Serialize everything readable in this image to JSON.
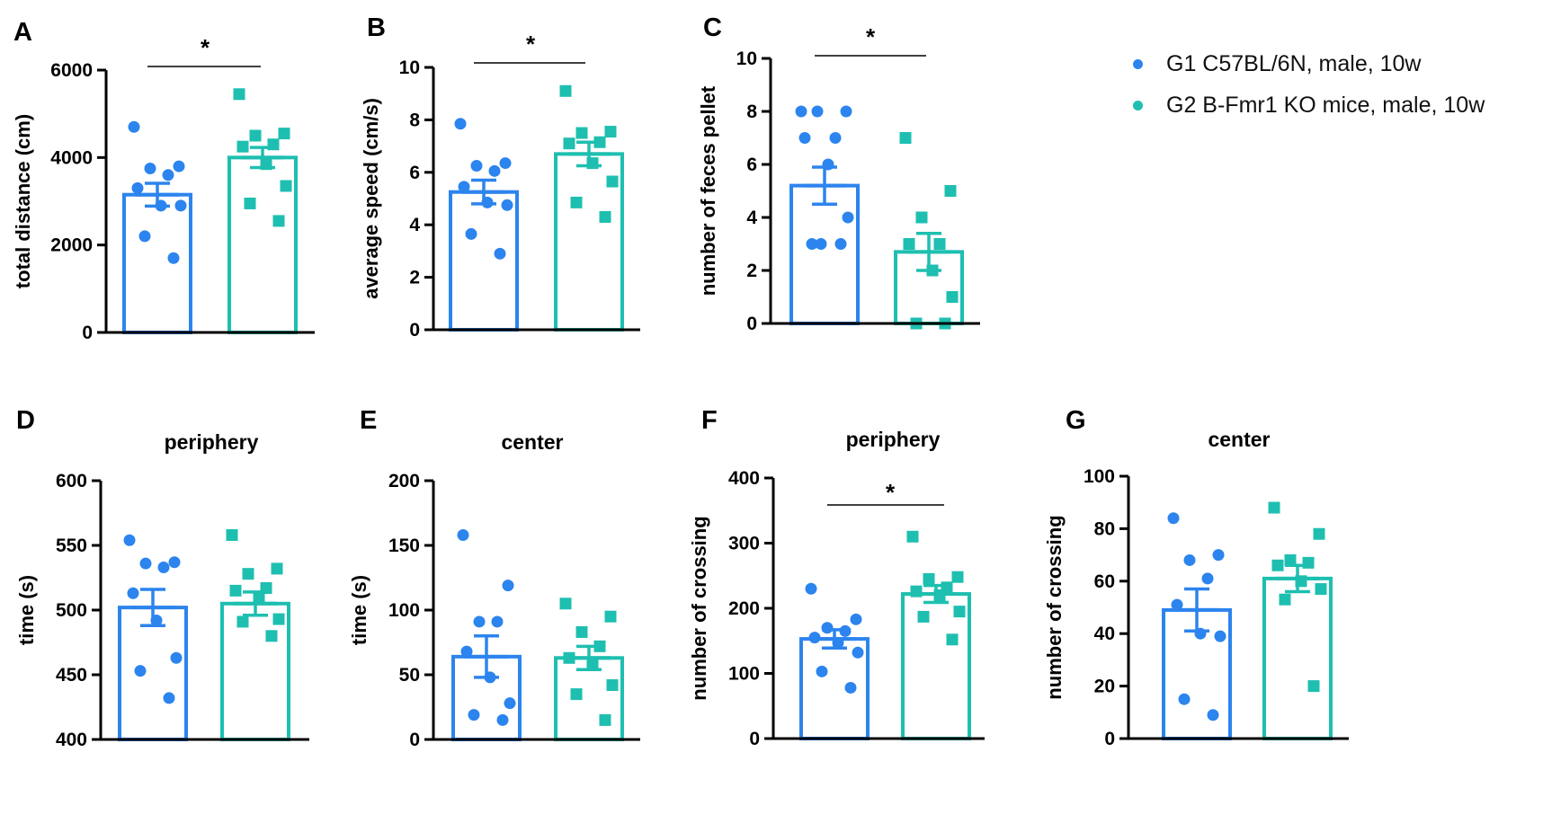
{
  "legend": {
    "g1_label": "G1 C57BL/6N, male, 10w",
    "g2_label": "G2 B-Fmr1 KO mice, male, 10w",
    "g1_color": "#2c84ee",
    "g2_color": "#1ebfb0"
  },
  "chart_data": [
    {
      "panel": "A",
      "type": "bar",
      "title": "",
      "ylabel": "total distance (cm)",
      "ylim": [
        0,
        6000
      ],
      "yticks": [
        0,
        2000,
        4000,
        6000
      ],
      "categories": [
        "G1",
        "G2"
      ],
      "means": [
        3150,
        4000
      ],
      "sem": [
        260,
        230
      ],
      "points": [
        [
          4700,
          3800,
          3750,
          3600,
          3300,
          2900,
          2900,
          2200,
          1700
        ],
        [
          5450,
          4550,
          4500,
          4300,
          4250,
          3850,
          3350,
          2950,
          2550
        ]
      ],
      "significance": "*"
    },
    {
      "panel": "B",
      "type": "bar",
      "title": "",
      "ylabel": "average speed (cm/s)",
      "ylim": [
        0,
        10
      ],
      "yticks": [
        0,
        2,
        4,
        6,
        8,
        10
      ],
      "categories": [
        "G1",
        "G2"
      ],
      "means": [
        5.25,
        6.7
      ],
      "sem": [
        0.45,
        0.45
      ],
      "points": [
        [
          7.85,
          6.35,
          6.25,
          6.05,
          5.45,
          4.85,
          4.75,
          3.65,
          2.9
        ],
        [
          9.1,
          7.55,
          7.5,
          7.15,
          7.1,
          6.35,
          5.65,
          4.85,
          4.3
        ]
      ],
      "significance": "*"
    },
    {
      "panel": "C",
      "type": "bar",
      "title": "",
      "ylabel": "number of feces pellet",
      "ylim": [
        0,
        10
      ],
      "yticks": [
        0,
        2,
        4,
        6,
        8,
        10
      ],
      "categories": [
        "G1",
        "G2"
      ],
      "means": [
        5.2,
        2.7
      ],
      "sem": [
        0.7,
        0.7
      ],
      "points": [
        [
          8,
          8,
          8,
          7,
          7,
          6,
          4,
          3,
          3,
          3
        ],
        [
          7,
          5,
          4,
          3,
          3,
          2,
          1,
          0,
          0
        ]
      ],
      "significance": "*"
    },
    {
      "panel": "D",
      "type": "bar",
      "title": "periphery",
      "ylabel": "time (s)",
      "ylim": [
        400,
        600
      ],
      "yticks": [
        400,
        450,
        500,
        550,
        600
      ],
      "categories": [
        "G1",
        "G2"
      ],
      "means": [
        502,
        505
      ],
      "sem": [
        14,
        9
      ],
      "points": [
        [
          554,
          537,
          536,
          533,
          513,
          492,
          463,
          453,
          432
        ],
        [
          558,
          532,
          528,
          517,
          515,
          509,
          493,
          491,
          480
        ]
      ],
      "significance": ""
    },
    {
      "panel": "E",
      "type": "bar",
      "title": "center",
      "ylabel": "time (s)",
      "ylim": [
        0,
        200
      ],
      "yticks": [
        0,
        50,
        100,
        150,
        200
      ],
      "categories": [
        "G1",
        "G2"
      ],
      "means": [
        64,
        63
      ],
      "sem": [
        16,
        9
      ],
      "points": [
        [
          158,
          119,
          91,
          91,
          68,
          48,
          28,
          19,
          15
        ],
        [
          105,
          95,
          83,
          72,
          63,
          58,
          42,
          35,
          15
        ]
      ],
      "significance": ""
    },
    {
      "panel": "F",
      "type": "bar",
      "title": "periphery",
      "ylabel": "number of crossing",
      "ylim": [
        0,
        400
      ],
      "yticks": [
        0,
        100,
        200,
        300,
        400
      ],
      "categories": [
        "G1",
        "G2"
      ],
      "means": [
        153,
        222
      ],
      "sem": [
        14,
        13
      ],
      "points": [
        [
          230,
          183,
          170,
          165,
          155,
          147,
          132,
          103,
          78
        ],
        [
          310,
          248,
          245,
          232,
          226,
          220,
          195,
          187,
          152
        ]
      ],
      "significance": "*"
    },
    {
      "panel": "G",
      "type": "bar",
      "title": "center",
      "ylabel": "number of crossing",
      "ylim": [
        0,
        100
      ],
      "yticks": [
        0,
        20,
        40,
        60,
        80,
        100
      ],
      "categories": [
        "G1",
        "G2"
      ],
      "means": [
        49,
        61
      ],
      "sem": [
        8,
        5
      ],
      "points": [
        [
          84,
          70,
          68,
          61,
          51,
          40,
          39,
          15,
          9
        ],
        [
          88,
          78,
          68,
          67,
          66,
          60,
          57,
          53,
          20
        ]
      ],
      "significance": ""
    }
  ]
}
